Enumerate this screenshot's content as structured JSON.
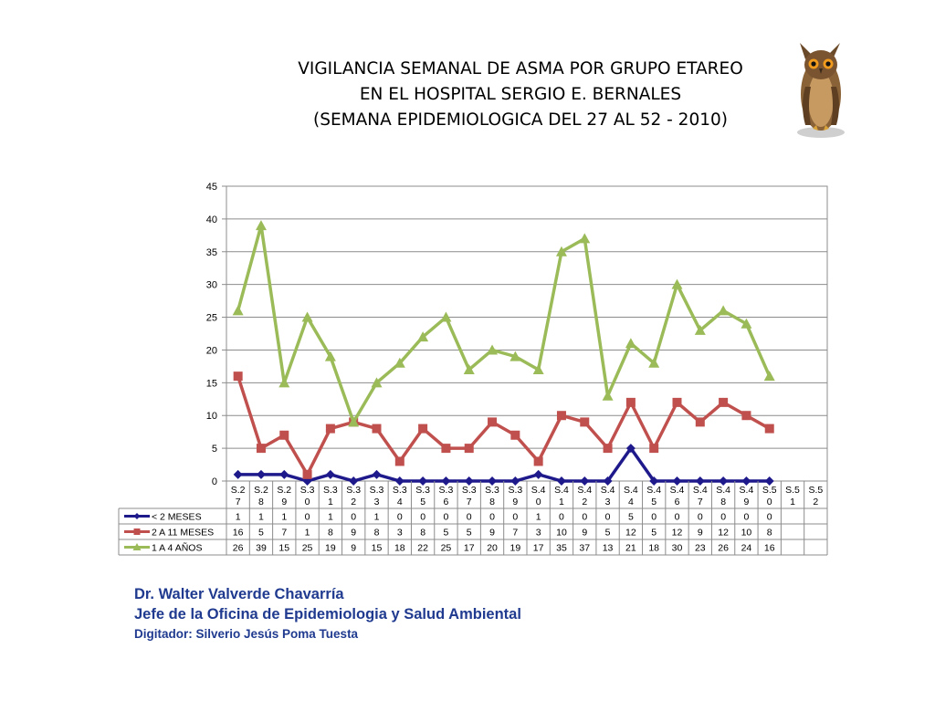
{
  "title": {
    "line1": "VIGILANCIA SEMANAL DE ASMA  POR GRUPO ETAREO",
    "line2": "EN EL HOSPITAL SERGIO E. BERNALES",
    "line3": "(SEMANA EPIDEMIOLOGICA DEL 27 AL 52 - 2010)"
  },
  "footer": {
    "name": "Dr.  Walter Valverde Chavarría",
    "role": "Jefe de la Oficina de Epidemiologia y  Salud Ambiental",
    "digitizer": "Digitador: Silverio Jesús Poma Tuesta"
  },
  "logo": {
    "icon": "owl-icon"
  },
  "chart_data": {
    "type": "line",
    "categories": [
      [
        "S.2",
        "7"
      ],
      [
        "S.2",
        "8"
      ],
      [
        "S.2",
        "9"
      ],
      [
        "S.3",
        "0"
      ],
      [
        "S.3",
        "1"
      ],
      [
        "S.3",
        "2"
      ],
      [
        "S.3",
        "3"
      ],
      [
        "S.3",
        "4"
      ],
      [
        "S.3",
        "5"
      ],
      [
        "S.3",
        "6"
      ],
      [
        "S.3",
        "7"
      ],
      [
        "S.3",
        "8"
      ],
      [
        "S.3",
        "9"
      ],
      [
        "S.4",
        "0"
      ],
      [
        "S.4",
        "1"
      ],
      [
        "S.4",
        "2"
      ],
      [
        "S.4",
        "3"
      ],
      [
        "S.4",
        "4"
      ],
      [
        "S.4",
        "5"
      ],
      [
        "S.4",
        "6"
      ],
      [
        "S.4",
        "7"
      ],
      [
        "S.4",
        "8"
      ],
      [
        "S.4",
        "9"
      ],
      [
        "S.5",
        "0"
      ],
      [
        "S.5",
        "1"
      ],
      [
        "S.5",
        "2"
      ]
    ],
    "series": [
      {
        "name": "< 2 MESES",
        "color": "#1f1a8c",
        "marker": "diamond",
        "values": [
          1,
          1,
          1,
          0,
          1,
          0,
          1,
          0,
          0,
          0,
          0,
          0,
          0,
          1,
          0,
          0,
          0,
          5,
          0,
          0,
          0,
          0,
          0,
          0,
          null,
          null
        ]
      },
      {
        "name": "2 A 11 MESES",
        "color": "#c0504d",
        "marker": "square",
        "values": [
          16,
          5,
          7,
          1,
          8,
          9,
          8,
          3,
          8,
          5,
          5,
          9,
          7,
          3,
          10,
          9,
          5,
          12,
          5,
          12,
          9,
          12,
          10,
          8,
          null,
          null
        ]
      },
      {
        "name": "1 A 4 AÑOS",
        "color": "#9bbb59",
        "marker": "triangle",
        "values": [
          26,
          39,
          15,
          25,
          19,
          9,
          15,
          18,
          22,
          25,
          17,
          20,
          19,
          17,
          35,
          37,
          13,
          21,
          18,
          30,
          23,
          26,
          24,
          16,
          null,
          null
        ]
      }
    ],
    "yticks": [
      0,
      5,
      10,
      15,
      20,
      25,
      30,
      35,
      40,
      45
    ],
    "ylim": [
      0,
      45
    ],
    "grid": true,
    "legend": "data-table"
  }
}
